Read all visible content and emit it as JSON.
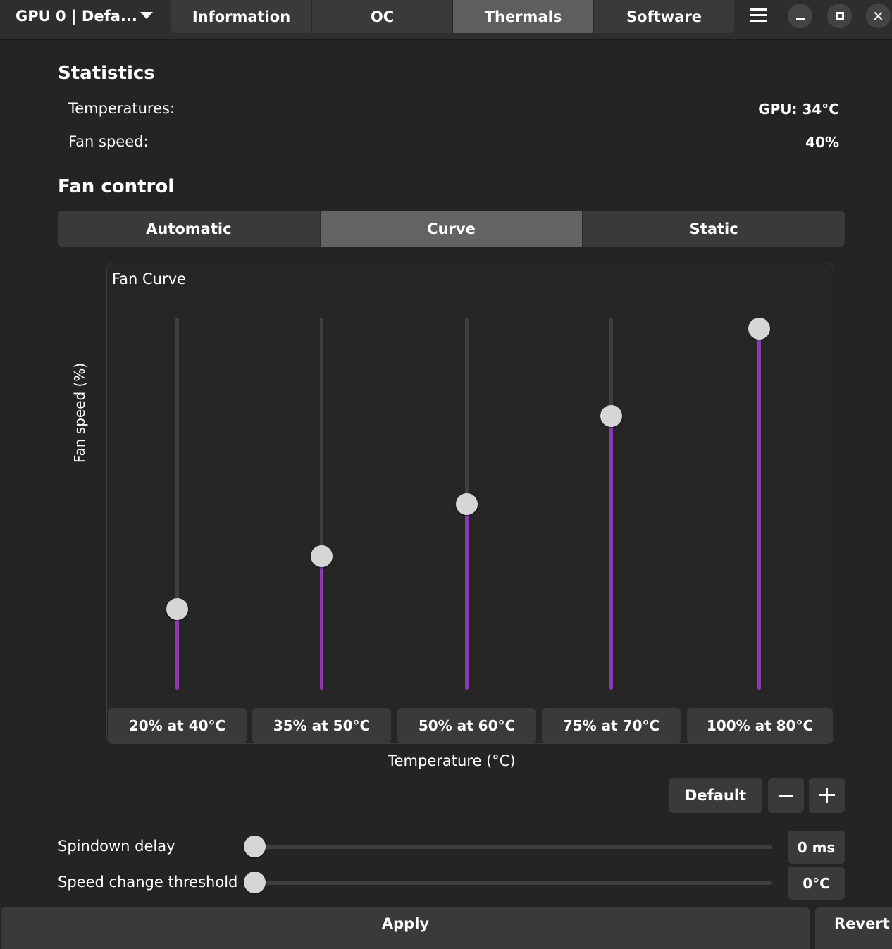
{
  "header": {
    "gpu_selector": "GPU 0 | Defa...",
    "tabs": [
      {
        "label": "Information",
        "active": false
      },
      {
        "label": "OC",
        "active": false
      },
      {
        "label": "Thermals",
        "active": true
      },
      {
        "label": "Software",
        "active": false
      }
    ]
  },
  "statistics": {
    "title": "Statistics",
    "temperatures_label": "Temperatures:",
    "temperatures_value": "GPU: 34°C",
    "fan_speed_label": "Fan speed:",
    "fan_speed_value": "40%"
  },
  "fan_control": {
    "title": "Fan control",
    "modes": [
      {
        "label": "Automatic",
        "active": false
      },
      {
        "label": "Curve",
        "active": true
      },
      {
        "label": "Static",
        "active": false
      }
    ]
  },
  "fan_curve": {
    "title": "Fan Curve",
    "y_axis_label": "Fan speed (%)",
    "x_axis_label": "Temperature (°C)",
    "points": [
      {
        "speed": 20,
        "label": "20% at 40°C"
      },
      {
        "speed": 35,
        "label": "35% at 50°C"
      },
      {
        "speed": 50,
        "label": "50% at 60°C"
      },
      {
        "speed": 75,
        "label": "75% at 70°C"
      },
      {
        "speed": 100,
        "label": "100% at 80°C"
      }
    ],
    "accent_color": "#8e3ab2",
    "default_button": "Default"
  },
  "settings": {
    "spindown_label": "Spindown delay",
    "spindown_value": "0 ms",
    "spindown_fraction": 0,
    "threshold_label": "Speed change threshold",
    "threshold_value": "0°C",
    "threshold_fraction": 0
  },
  "footer": {
    "apply": "Apply",
    "revert": "Revert"
  }
}
